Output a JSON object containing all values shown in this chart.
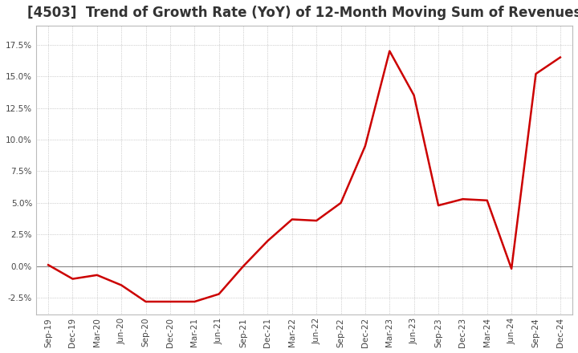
{
  "title": "[4503]  Trend of Growth Rate (YoY) of 12-Month Moving Sum of Revenues",
  "title_fontsize": 12,
  "line_color": "#cc0000",
  "background_color": "#ffffff",
  "plot_bg_color": "#ffffff",
  "grid_color": "#aaaaaa",
  "ylim": [
    -3.8,
    19.0
  ],
  "yticks": [
    -2.5,
    0.0,
    2.5,
    5.0,
    7.5,
    10.0,
    12.5,
    15.0,
    17.5
  ],
  "x_labels": [
    "Sep-19",
    "Dec-19",
    "Mar-20",
    "Jun-20",
    "Sep-20",
    "Dec-20",
    "Mar-21",
    "Jun-21",
    "Sep-21",
    "Dec-21",
    "Mar-22",
    "Jun-22",
    "Sep-22",
    "Dec-22",
    "Mar-23",
    "Jun-23",
    "Sep-23",
    "Dec-23",
    "Mar-24",
    "Jun-24",
    "Sep-24",
    "Dec-24"
  ],
  "values": [
    0.1,
    -1.0,
    -0.7,
    -1.5,
    -2.8,
    -2.8,
    -2.8,
    -2.2,
    0.0,
    2.0,
    3.7,
    3.6,
    5.0,
    9.5,
    17.0,
    13.5,
    4.8,
    5.3,
    5.2,
    -0.2,
    15.2,
    16.5
  ]
}
